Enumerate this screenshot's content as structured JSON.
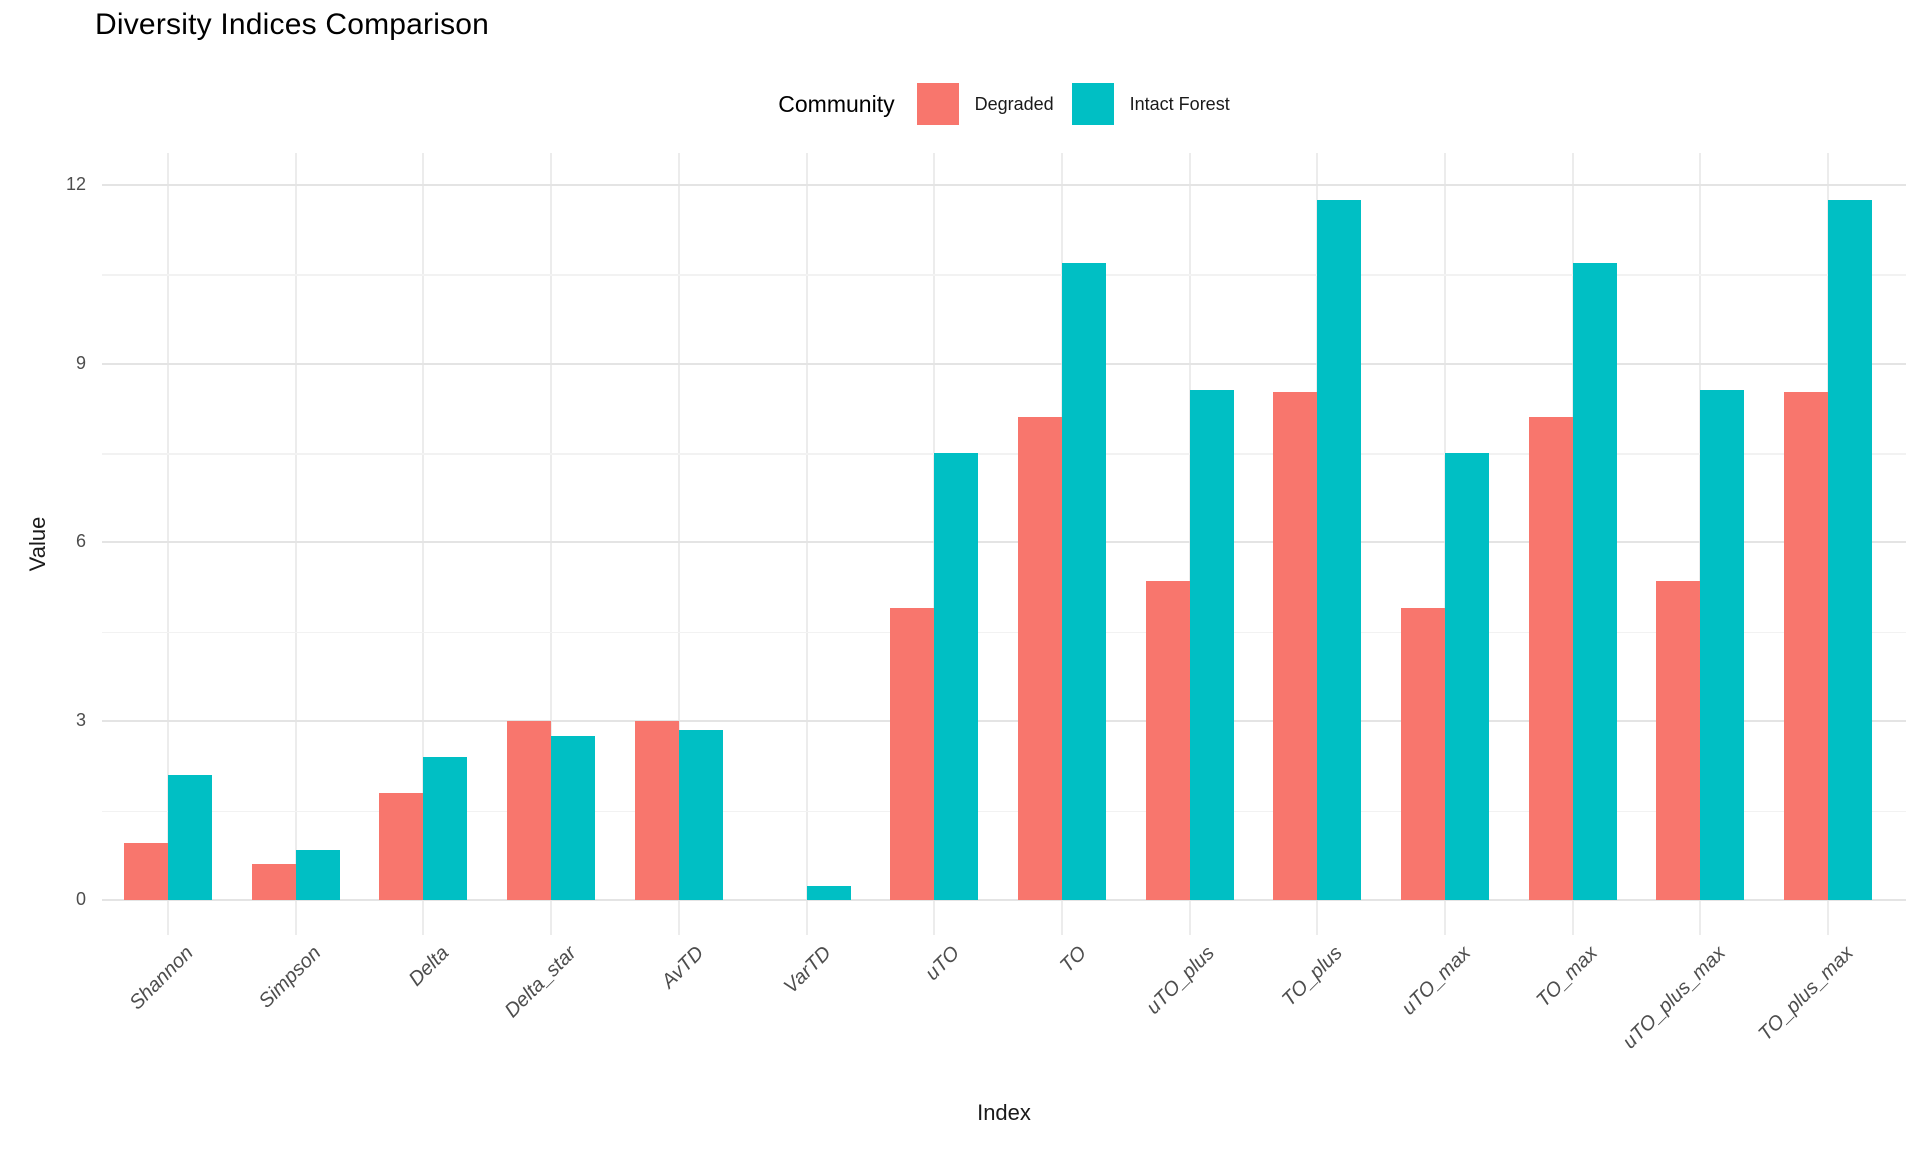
{
  "title": "Diversity Indices Comparison",
  "legend": {
    "title": "Community",
    "items": [
      {
        "label": "Degraded",
        "color": "#F8766D"
      },
      {
        "label": "Intact Forest",
        "color": "#00BFC4"
      }
    ]
  },
  "axes": {
    "x_title": "Index",
    "y_title": "Value",
    "y_ticks": [
      0,
      3,
      6,
      9,
      12
    ],
    "y_minor_ticks": [
      1.5,
      4.5,
      7.5,
      10.5
    ]
  },
  "style": {
    "degraded_color": "#F8766D",
    "intact_color": "#00BFC4",
    "grid_major_color": "#E4E4E4",
    "grid_minor_color": "#F2F2F2",
    "grid_vertical_color": "#ECECEC",
    "axis_text_color": "#4D4D4D",
    "background": "#FFFFFF"
  },
  "chart_data": {
    "type": "bar",
    "title": "Diversity Indices Comparison",
    "xlabel": "Index",
    "ylabel": "Value",
    "ylim": [
      0,
      12
    ],
    "grid": true,
    "legend_position": "top",
    "legend_title": "Community",
    "categories": [
      "Shannon",
      "Simpson",
      "Delta",
      "Delta_star",
      "AvTD",
      "VarTD",
      "uTO",
      "TO",
      "uTO_plus",
      "TO_plus",
      "uTO_max",
      "TO_max",
      "uTO_plus_max",
      "TO_plus_max"
    ],
    "series": [
      {
        "name": "Degraded",
        "color": "#F8766D",
        "values": [
          0.96,
          0.6,
          1.8,
          3.0,
          3.0,
          0.0,
          4.9,
          8.1,
          5.35,
          8.52,
          4.9,
          8.1,
          5.35,
          8.52
        ]
      },
      {
        "name": "Intact Forest",
        "color": "#00BFC4",
        "values": [
          2.09,
          0.84,
          2.4,
          2.76,
          2.86,
          0.23,
          7.5,
          10.68,
          8.56,
          11.74,
          7.5,
          10.68,
          8.56,
          11.74
        ]
      }
    ]
  }
}
